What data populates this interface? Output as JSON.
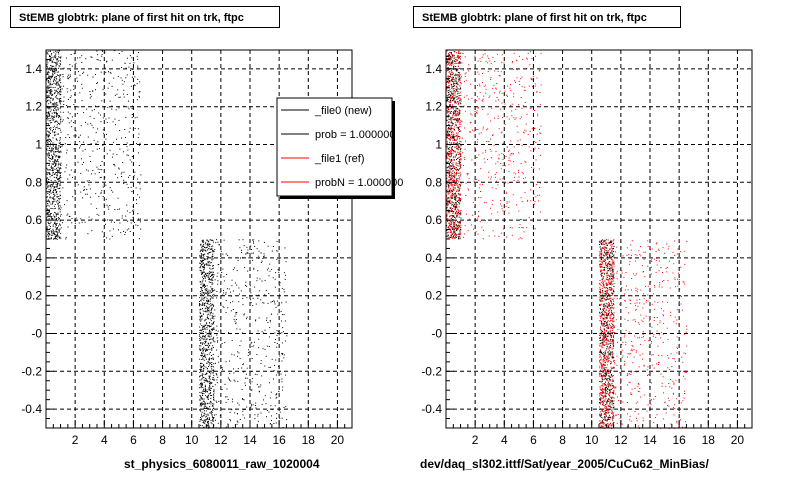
{
  "charts": [
    {
      "title": "StEMB globtrk: plane of first hit on trk, ftpc",
      "subtitle": "st_physics_6080011_raw_1020004"
    },
    {
      "title": "StEMB globtrk: plane of first hit on trk, ftpc",
      "subtitle": "dev/daq_sl302.ittf/Sat/year_2005/CuCu62_MinBias/"
    }
  ],
  "footer_note": "",
  "legend": {
    "items": [
      {
        "label": "_file0 (new)",
        "color": "#000000"
      },
      {
        "label": "prob = 1.000000",
        "color": "#000000"
      },
      {
        "label": "_file1 (ref)",
        "color": "#ff0000"
      },
      {
        "label": "probN = 1.000000",
        "color": "#ff0000"
      }
    ]
  },
  "chart_data": [
    {
      "type": "scatter",
      "title": "StEMB globtrk: plane of first hit on trk, ftpc",
      "xlabel": "st_physics_6080011_raw_1020004",
      "ylabel": "",
      "xlim": [
        0,
        21
      ],
      "ylim": [
        -0.5,
        1.5
      ],
      "x_ticks": [
        "2",
        "4",
        "6",
        "8",
        "10",
        "12",
        "14",
        "16",
        "18",
        "20"
      ],
      "y_ticks": [
        "-0.4",
        "-0.2",
        "-0",
        "0.2",
        "0.4",
        "0.6",
        "0.8",
        "1",
        "1.2",
        "1.4"
      ],
      "grid": true,
      "legend_position": "top-right",
      "series": [
        {
          "name": "_file0 (new)",
          "color": "#000000",
          "regions": [
            {
              "x": [
                0,
                1
              ],
              "y": [
                0.5,
                1.5
              ],
              "density": "dense"
            },
            {
              "x": [
                1,
                6.5
              ],
              "y": [
                0.5,
                1.5
              ],
              "density": "sparse"
            },
            {
              "x": [
                10.5,
                11.5
              ],
              "y": [
                -0.5,
                0.5
              ],
              "density": "dense"
            },
            {
              "x": [
                11.5,
                16.5
              ],
              "y": [
                -0.5,
                0.5
              ],
              "density": "sparse"
            }
          ]
        }
      ]
    },
    {
      "type": "scatter",
      "title": "StEMB globtrk: plane of first hit on trk, ftpc",
      "xlabel": "dev/daq_sl302.ittf/Sat/year_2005/CuCu62_MinBias/",
      "ylabel": "",
      "xlim": [
        0,
        21
      ],
      "ylim": [
        -0.5,
        1.5
      ],
      "x_ticks": [
        "2",
        "4",
        "6",
        "8",
        "10",
        "12",
        "14",
        "16",
        "18",
        "20"
      ],
      "y_ticks": [
        "-0.4",
        "-0.2",
        "-0",
        "0.2",
        "0.4",
        "0.6",
        "0.8",
        "1",
        "1.2",
        "1.4"
      ],
      "grid": true,
      "series": [
        {
          "name": "_file1 (ref)",
          "color": "#ff0000",
          "regions": [
            {
              "x": [
                0,
                1
              ],
              "y": [
                0.5,
                1.5
              ],
              "density": "dense"
            },
            {
              "x": [
                1,
                6.5
              ],
              "y": [
                0.5,
                1.5
              ],
              "density": "sparse"
            },
            {
              "x": [
                10.5,
                11.5
              ],
              "y": [
                -0.5,
                0.5
              ],
              "density": "dense"
            },
            {
              "x": [
                11.5,
                16.5
              ],
              "y": [
                -0.5,
                0.5
              ],
              "density": "sparse"
            }
          ]
        },
        {
          "name": "_file0 (new)",
          "color": "#000000",
          "regions": [
            {
              "x": [
                0,
                1
              ],
              "y": [
                0.5,
                1.5
              ],
              "density": "sparse"
            },
            {
              "x": [
                10.5,
                11.5
              ],
              "y": [
                -0.5,
                0.5
              ],
              "density": "sparse"
            }
          ]
        }
      ]
    }
  ]
}
